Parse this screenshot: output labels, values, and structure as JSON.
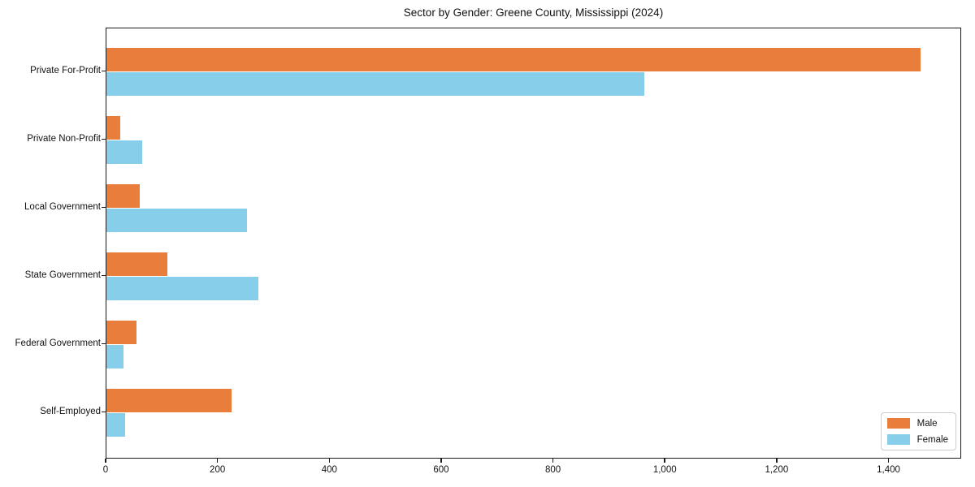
{
  "chart_data": {
    "type": "bar",
    "orientation": "horizontal",
    "title": "Sector by Gender: Greene County, Mississippi (2024)",
    "categories": [
      "Private For-Profit",
      "Private Non-Profit",
      "Local Government",
      "State Government",
      "Federal Government",
      "Self-Employed"
    ],
    "series": [
      {
        "name": "Male",
        "color": "#e97e3c",
        "values": [
          1456,
          25,
          59,
          109,
          53,
          224
        ]
      },
      {
        "name": "Female",
        "color": "#87ceeb",
        "values": [
          962,
          64,
          252,
          272,
          30,
          33
        ]
      }
    ],
    "xlim": [
      0,
      1530
    ],
    "xticks": [
      0,
      200,
      400,
      600,
      800,
      1000,
      1200,
      1400
    ],
    "xtick_labels": [
      "0",
      "200",
      "400",
      "600",
      "800",
      "1,000",
      "1,200",
      "1,400"
    ],
    "xlabel": "",
    "ylabel": "",
    "grid": false,
    "legend": {
      "position": "lower right",
      "entries": [
        "Male",
        "Female"
      ]
    },
    "colors": {
      "background": "#ffffff",
      "frame": "#1a1a1a",
      "text": "#111111"
    }
  }
}
